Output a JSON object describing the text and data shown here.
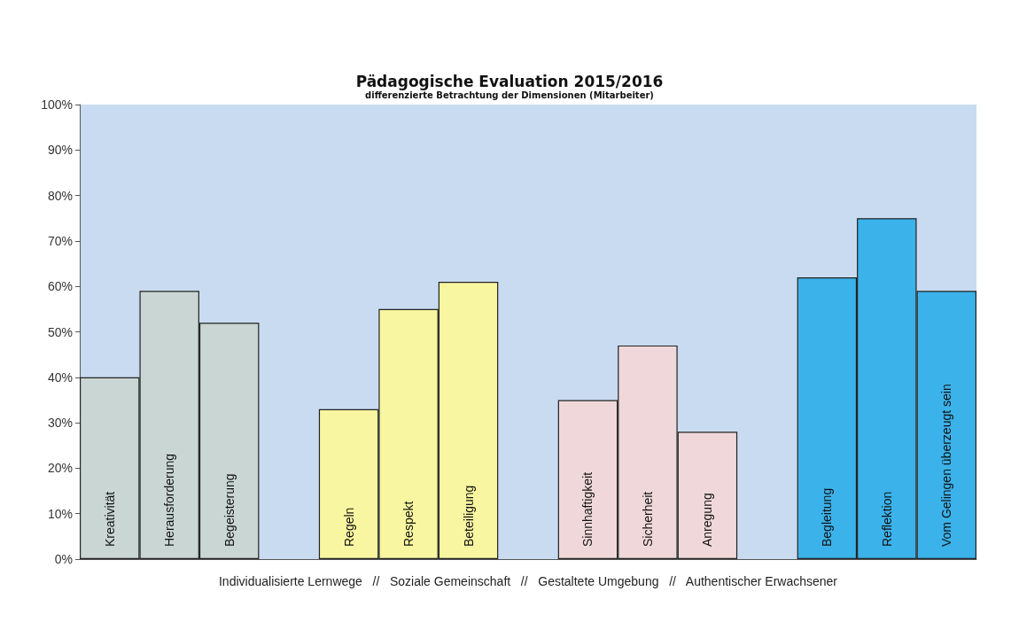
{
  "chart_data": {
    "type": "bar",
    "title": "Pädagogische Evaluation 2015/2016",
    "subtitle": "differenzierte Betrachtung der Dimensionen (Mitarbeiter)",
    "xlabel": "Individualisierte Lernwege   //   Soziale Gemeinschaft   //   Gestaltete Umgebung   //   Authentischer Erwachsener",
    "categories": [
      "Kreativität",
      "Herausforderung",
      "Begeisterung",
      null,
      "Regeln",
      "Respekt",
      "Beteiligung",
      null,
      "Sinnhaftigkeit",
      "Sicherheit",
      "Anregung",
      null,
      "Begleitung",
      "Reflektion",
      "Vom Gelingen überzeugt sein"
    ],
    "values": [
      40,
      59,
      52,
      null,
      33,
      55,
      61,
      null,
      35,
      47,
      28,
      null,
      62,
      75,
      59
    ],
    "colors": [
      "#c9d6d4",
      "#c9d6d4",
      "#c9d6d4",
      null,
      "#f8f6a0",
      "#f8f6a0",
      "#f8f6a0",
      null,
      "#f0d8da",
      "#f0d8da",
      "#f0d8da",
      null,
      "#3cb2ea",
      "#3cb2ea",
      "#3cb2ea"
    ],
    "ylim": [
      0,
      100
    ],
    "yticks": [
      {
        "value": 0,
        "label": "0%"
      },
      {
        "value": 10,
        "label": "10%"
      },
      {
        "value": 20,
        "label": "20%"
      },
      {
        "value": 30,
        "label": "30%"
      },
      {
        "value": 40,
        "label": "40%"
      },
      {
        "value": 50,
        "label": "50%"
      },
      {
        "value": 60,
        "label": "60%"
      },
      {
        "value": 70,
        "label": "70%"
      },
      {
        "value": 80,
        "label": "80%"
      },
      {
        "value": 90,
        "label": "90%"
      },
      {
        "value": 100,
        "label": "100%"
      }
    ],
    "grid": false
  }
}
